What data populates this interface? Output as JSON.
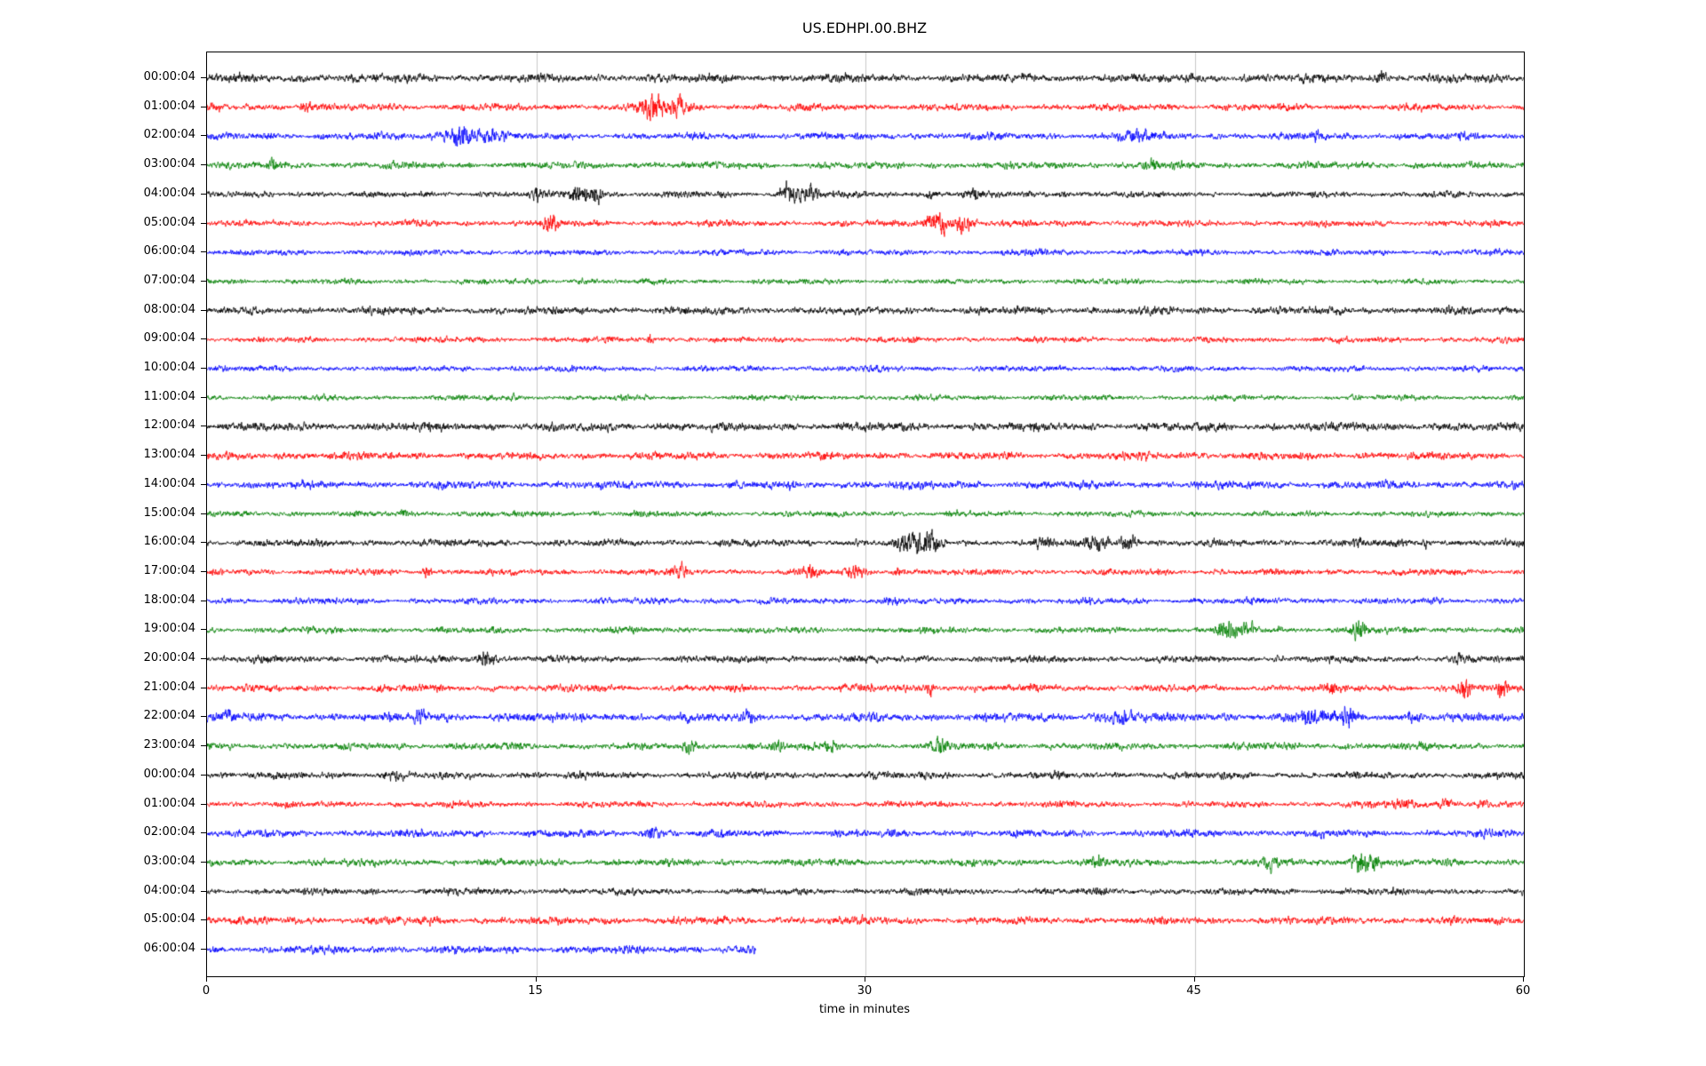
{
  "chart_data": {
    "type": "line",
    "subtype": "helicorder-seismogram",
    "title": "US.EDHPI.00.BHZ",
    "xlabel": "time in minutes",
    "xlim": [
      0,
      60
    ],
    "x_ticks": [
      0,
      15,
      30,
      45,
      60
    ],
    "x_gridlines": [
      15,
      30,
      45
    ],
    "grid_color": "#c8c8c8",
    "trace_colors_cycle": [
      "#000000",
      "#ff0000",
      "#0000ff",
      "#008000"
    ],
    "events_format": "[center_minute, amplitude_multiplier, width_minutes]",
    "rows": [
      {
        "label": "00:00:04",
        "color": "#000000",
        "noise": 2.2,
        "end_minute": 60,
        "events": [
          [
            53.5,
            2.5,
            0.2
          ]
        ]
      },
      {
        "label": "01:00:04",
        "color": "#ff0000",
        "noise": 1.8,
        "end_minute": 60,
        "events": [
          [
            4.5,
            2.0,
            0.3
          ],
          [
            20.3,
            5.0,
            0.5
          ],
          [
            21.5,
            4.0,
            0.4
          ]
        ]
      },
      {
        "label": "02:00:04",
        "color": "#0000ff",
        "noise": 1.8,
        "end_minute": 60,
        "events": [
          [
            11.5,
            4.0,
            0.8
          ],
          [
            13.0,
            3.0,
            0.5
          ],
          [
            42.5,
            2.5,
            0.8
          ],
          [
            50.5,
            2.5,
            0.2
          ]
        ]
      },
      {
        "label": "03:00:04",
        "color": "#008000",
        "noise": 1.8,
        "end_minute": 60,
        "events": [
          [
            3.0,
            3.5,
            0.15
          ],
          [
            43.0,
            2.5,
            0.3
          ]
        ]
      },
      {
        "label": "04:00:04",
        "color": "#000000",
        "noise": 1.6,
        "end_minute": 60,
        "events": [
          [
            15.0,
            3.0,
            0.3
          ],
          [
            17.0,
            4.0,
            0.5
          ],
          [
            17.8,
            3.5,
            0.3
          ],
          [
            26.5,
            4.0,
            0.4
          ],
          [
            27.5,
            3.5,
            0.5
          ],
          [
            33.0,
            2.5,
            0.3
          ],
          [
            35.0,
            2.5,
            0.3
          ],
          [
            39.0,
            2.0,
            0.3
          ]
        ]
      },
      {
        "label": "05:00:04",
        "color": "#ff0000",
        "noise": 1.6,
        "end_minute": 60,
        "events": [
          [
            15.7,
            4.0,
            0.3
          ],
          [
            33.3,
            5.0,
            0.6
          ],
          [
            34.5,
            4.0,
            0.4
          ]
        ]
      },
      {
        "label": "06:00:04",
        "color": "#0000ff",
        "noise": 1.5,
        "end_minute": 60,
        "events": [
          [
            38.0,
            1.5,
            0.5
          ]
        ]
      },
      {
        "label": "07:00:04",
        "color": "#008000",
        "noise": 1.4,
        "end_minute": 60,
        "events": [
          [
            17.0,
            1.5,
            0.4
          ]
        ]
      },
      {
        "label": "08:00:04",
        "color": "#000000",
        "noise": 2.0,
        "end_minute": 60,
        "events": []
      },
      {
        "label": "09:00:04",
        "color": "#ff0000",
        "noise": 1.5,
        "end_minute": 60,
        "events": [
          [
            20.2,
            2.5,
            0.15
          ]
        ]
      },
      {
        "label": "10:00:04",
        "color": "#0000ff",
        "noise": 1.5,
        "end_minute": 60,
        "events": []
      },
      {
        "label": "11:00:04",
        "color": "#008000",
        "noise": 1.4,
        "end_minute": 60,
        "events": [
          [
            14.0,
            1.6,
            0.3
          ]
        ]
      },
      {
        "label": "12:00:04",
        "color": "#000000",
        "noise": 2.2,
        "end_minute": 60,
        "events": []
      },
      {
        "label": "13:00:04",
        "color": "#ff0000",
        "noise": 2.0,
        "end_minute": 60,
        "events": []
      },
      {
        "label": "14:00:04",
        "color": "#0000ff",
        "noise": 2.0,
        "end_minute": 60,
        "events": []
      },
      {
        "label": "15:00:04",
        "color": "#008000",
        "noise": 1.5,
        "end_minute": 60,
        "events": [
          [
            9.0,
            1.8,
            0.3
          ],
          [
            19.5,
            1.8,
            0.3
          ]
        ]
      },
      {
        "label": "16:00:04",
        "color": "#000000",
        "noise": 1.8,
        "end_minute": 60,
        "events": [
          [
            32.0,
            4.5,
            0.5
          ],
          [
            33.0,
            4.0,
            0.4
          ],
          [
            38.0,
            2.5,
            0.4
          ],
          [
            40.5,
            3.0,
            0.5
          ],
          [
            42.0,
            3.5,
            0.4
          ],
          [
            52.5,
            2.5,
            0.2
          ],
          [
            55.5,
            2.0,
            0.2
          ]
        ]
      },
      {
        "label": "17:00:04",
        "color": "#ff0000",
        "noise": 1.6,
        "end_minute": 60,
        "events": [
          [
            10.0,
            2.5,
            0.2
          ],
          [
            21.5,
            3.0,
            0.4
          ],
          [
            27.5,
            3.0,
            0.3
          ],
          [
            29.5,
            3.0,
            0.4
          ],
          [
            31.5,
            2.0,
            0.3
          ]
        ]
      },
      {
        "label": "18:00:04",
        "color": "#0000ff",
        "noise": 1.6,
        "end_minute": 60,
        "events": [
          [
            31.0,
            2.0,
            0.4
          ]
        ]
      },
      {
        "label": "19:00:04",
        "color": "#008000",
        "noise": 1.6,
        "end_minute": 60,
        "events": [
          [
            46.5,
            3.5,
            0.5
          ],
          [
            47.5,
            3.0,
            0.3
          ],
          [
            52.5,
            4.0,
            0.4
          ]
        ]
      },
      {
        "label": "20:00:04",
        "color": "#000000",
        "noise": 1.8,
        "end_minute": 60,
        "events": [
          [
            12.8,
            3.5,
            0.4
          ],
          [
            57.0,
            2.0,
            0.2
          ]
        ]
      },
      {
        "label": "21:00:04",
        "color": "#ff0000",
        "noise": 1.8,
        "end_minute": 60,
        "events": [
          [
            33.0,
            2.5,
            0.3
          ],
          [
            51.3,
            2.5,
            0.2
          ],
          [
            57.3,
            3.5,
            0.3
          ],
          [
            59.0,
            3.0,
            0.2
          ]
        ]
      },
      {
        "label": "22:00:04",
        "color": "#0000ff",
        "noise": 2.2,
        "end_minute": 60,
        "events": [
          [
            1.0,
            2.5,
            0.3
          ],
          [
            9.7,
            2.5,
            0.3
          ],
          [
            24.8,
            2.2,
            0.3
          ],
          [
            41.5,
            2.2,
            0.8
          ],
          [
            50.5,
            2.5,
            0.8
          ],
          [
            52.0,
            3.0,
            0.3
          ],
          [
            55.0,
            2.2,
            0.3
          ]
        ]
      },
      {
        "label": "23:00:04",
        "color": "#008000",
        "noise": 1.8,
        "end_minute": 60,
        "events": [
          [
            22.0,
            2.5,
            0.3
          ],
          [
            26.0,
            2.0,
            0.3
          ],
          [
            28.5,
            2.0,
            0.4
          ],
          [
            33.5,
            3.0,
            0.4
          ]
        ]
      },
      {
        "label": "00:00:04",
        "color": "#000000",
        "noise": 1.8,
        "end_minute": 60,
        "events": [
          [
            8.5,
            2.0,
            0.5
          ],
          [
            15.0,
            1.8,
            0.3
          ]
        ]
      },
      {
        "label": "01:00:04",
        "color": "#ff0000",
        "noise": 1.6,
        "end_minute": 60,
        "events": [
          [
            54.5,
            2.5,
            0.6
          ],
          [
            56.5,
            2.5,
            0.5
          ],
          [
            58.0,
            2.0,
            0.3
          ]
        ]
      },
      {
        "label": "02:00:04",
        "color": "#0000ff",
        "noise": 1.9,
        "end_minute": 60,
        "events": [
          [
            20.3,
            2.5,
            0.4
          ]
        ]
      },
      {
        "label": "03:00:04",
        "color": "#008000",
        "noise": 1.8,
        "end_minute": 60,
        "events": [
          [
            40.5,
            2.5,
            0.4
          ],
          [
            48.5,
            2.5,
            0.4
          ],
          [
            52.5,
            4.5,
            0.4
          ],
          [
            53.2,
            3.5,
            0.3
          ]
        ]
      },
      {
        "label": "04:00:04",
        "color": "#000000",
        "noise": 1.7,
        "end_minute": 60,
        "events": []
      },
      {
        "label": "05:00:04",
        "color": "#ff0000",
        "noise": 2.0,
        "end_minute": 60,
        "events": []
      },
      {
        "label": "06:00:04",
        "color": "#0000ff",
        "noise": 2.0,
        "end_minute": 25,
        "events": []
      }
    ]
  }
}
